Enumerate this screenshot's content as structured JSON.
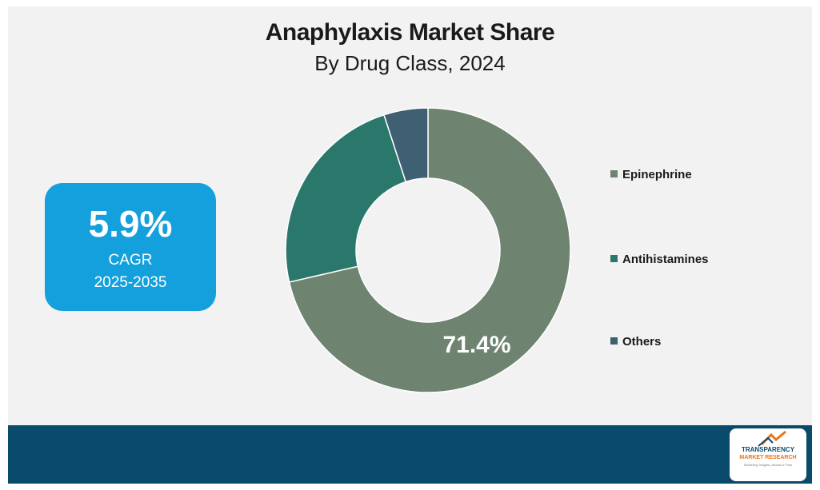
{
  "title": "Anaphylaxis Market Share",
  "subtitle": "By Drug Class,  2024",
  "cagr": {
    "value": "5.9%",
    "label": "CAGR",
    "period": "2025-2035"
  },
  "logo": {
    "line1": "TRANSPARENCY",
    "line2": "MARKET RESEARCH",
    "line3": "Delivering Insights, Ahead of Time"
  },
  "chart_data": {
    "type": "pie",
    "title": "Anaphylaxis Market Share",
    "subtitle": "By Drug Class,  2024",
    "categories": [
      "Epinephrine",
      "Antihistamines",
      "Others"
    ],
    "values": [
      71.4,
      23.6,
      5.0
    ],
    "data_labels": [
      "71.4%",
      "",
      ""
    ],
    "colors": [
      "#6e8370",
      "#2a786c",
      "#3f5f72"
    ],
    "donut": true,
    "legend_position": "right"
  }
}
